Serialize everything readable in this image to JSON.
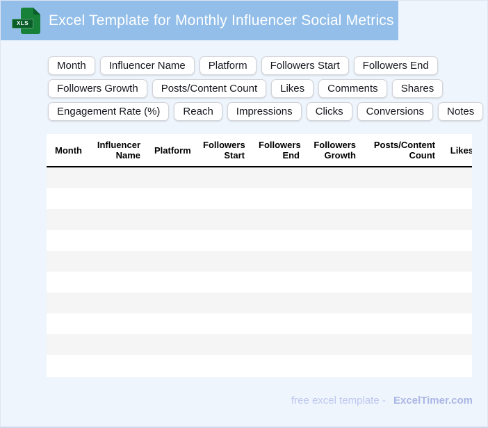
{
  "header": {
    "title": "Excel Template for Monthly Influencer Social Metrics",
    "file_icon_label": "XLS"
  },
  "chips": {
    "rows": [
      [
        "Month",
        "Influencer Name",
        "Platform",
        "Followers Start",
        "Followers End"
      ],
      [
        "Followers Growth",
        "Posts/Content Count",
        "Likes",
        "Comments",
        "Shares"
      ],
      [
        "Engagement Rate (%)",
        "Reach",
        "Impressions",
        "Clicks",
        "Conversions",
        "Notes"
      ]
    ]
  },
  "table": {
    "columns": [
      {
        "label": "Month"
      },
      {
        "label": "Influencer Name"
      },
      {
        "label": "Platform"
      },
      {
        "label": "Followers Start"
      },
      {
        "label": "Followers End"
      },
      {
        "label": "Followers Growth"
      },
      {
        "label": "Posts/Content Count"
      },
      {
        "label": "Likes"
      }
    ],
    "empty_row_count": 10
  },
  "footer": {
    "prefix": "free excel template -",
    "brand": "ExcelTimer.com"
  },
  "colors": {
    "header_bg": "#92bee9",
    "page_bg": "#eff5fd",
    "row_stripe": "#f5f5f6",
    "icon_green": "#17813a",
    "icon_dark_green": "#0b5e29",
    "footer_text": "#bdc7ee",
    "footer_brand": "#aab6e4"
  }
}
